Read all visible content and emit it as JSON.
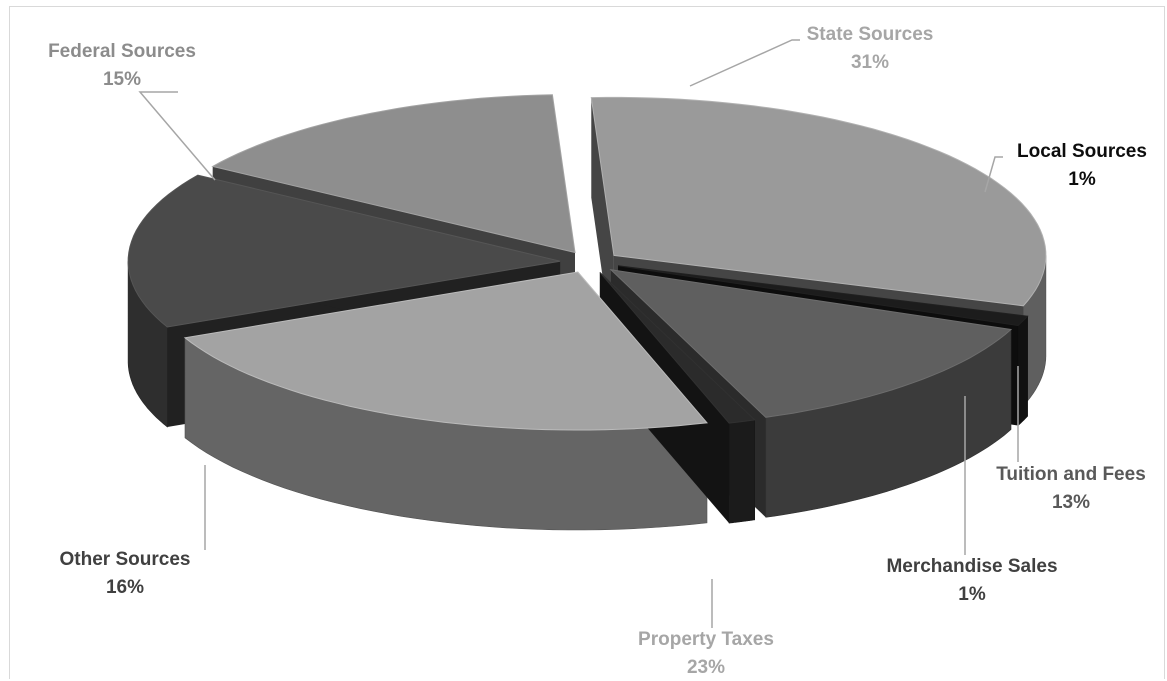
{
  "chart_data": {
    "type": "pie",
    "title": "",
    "slices": [
      {
        "name": "State Sources",
        "value": 31,
        "label": "31%",
        "color": "#9a9a9a",
        "label_color": "#a6a6a6"
      },
      {
        "name": "Local Sources",
        "value": 1,
        "label": "1%",
        "color": "#1c1c1c",
        "label_color": "#0d0d0d"
      },
      {
        "name": "Tuition and Fees",
        "value": 13,
        "label": "13%",
        "color": "#5f5f5f",
        "label_color": "#595959"
      },
      {
        "name": "Merchandise Sales",
        "value": 1,
        "label": "1%",
        "color": "#2b2b2b",
        "label_color": "#404040"
      },
      {
        "name": "Property Taxes",
        "value": 23,
        "label": "23%",
        "color": "#a3a3a3",
        "label_color": "#a6a6a6"
      },
      {
        "name": "Other Sources",
        "value": 16,
        "label": "16%",
        "color": "#4a4a4a",
        "label_color": "#404040"
      },
      {
        "name": "Federal Sources",
        "value": 15,
        "label": "15%",
        "color": "#8e8e8e",
        "label_color": "#8c8c8c"
      }
    ],
    "style": "3d-exploded",
    "legend": "none",
    "data_labels": "outside-with-leader-lines"
  }
}
